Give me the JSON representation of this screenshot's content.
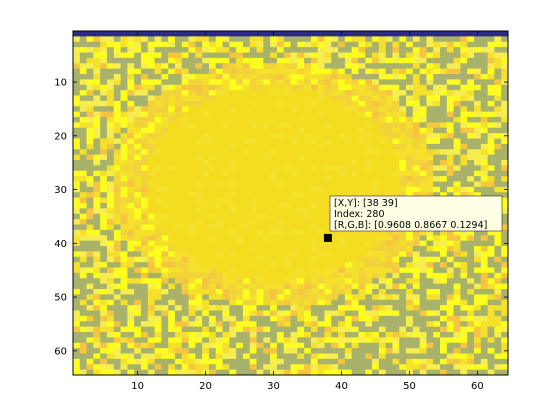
{
  "figure": {
    "background": "#ffffff",
    "axes_color": "#000000"
  },
  "chart_data": {
    "type": "heatmap",
    "title": "",
    "xlabel": "",
    "ylabel": "",
    "grid_size": [
      64,
      64
    ],
    "xlim": [
      0.5,
      64.5
    ],
    "ylim": [
      64.5,
      0.5
    ],
    "y_direction": "reverse",
    "x_ticks": [
      "10",
      "20",
      "30",
      "40",
      "50",
      "60"
    ],
    "y_ticks": [
      "10",
      "20",
      "30",
      "40",
      "50",
      "60"
    ],
    "x_tick_values": [
      10,
      20,
      30,
      40,
      50,
      60
    ],
    "y_tick_values": [
      10,
      20,
      30,
      40,
      50,
      60
    ],
    "colormap": {
      "dark_top_row": "#2b2b80",
      "olive": "#a9b26b",
      "bright_yellow": "#fdfd1f",
      "pale_yellow": "#f6ee50",
      "mid_yellow": "#f5e02b",
      "orange_yellow": "#f5c542",
      "disc": "#f4dd21",
      "disc_edge": "#f2d43a"
    },
    "structure": {
      "row_1": "dark_top_row",
      "center": [
        30,
        29
      ],
      "disc_radius": 19,
      "halo_radius": 24,
      "background_mix": [
        "olive",
        "bright_yellow",
        "pale_yellow",
        "mid_yellow",
        "orange_yellow"
      ]
    },
    "datatip": {
      "x": 38,
      "y": 39,
      "line1": "[X,Y]: [38 39]",
      "line2": "Index: 280",
      "line3": "[R,G,B]: [0.9608 0.8667 0.1294]"
    }
  }
}
